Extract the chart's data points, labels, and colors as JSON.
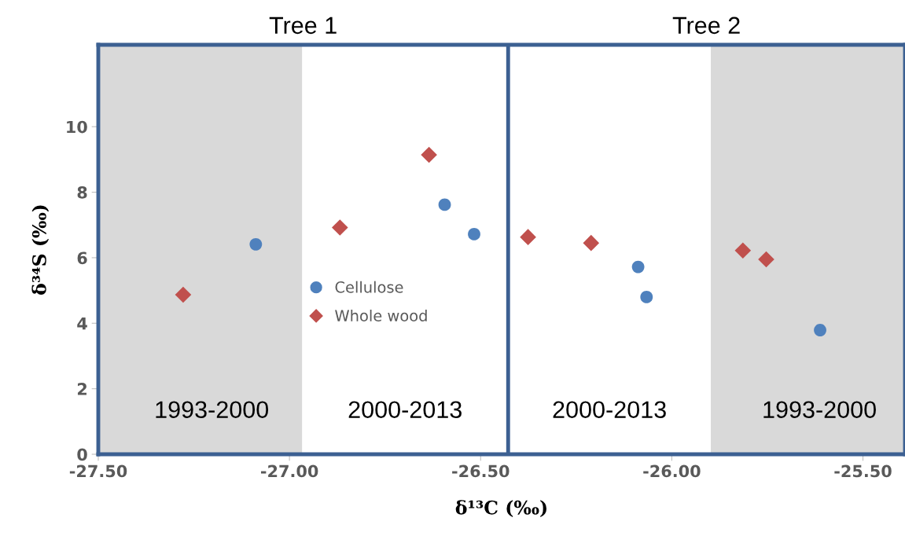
{
  "chart_data": {
    "type": "scatter",
    "xlabel": "δ¹³C (‰)",
    "ylabel": "δ³⁴S (‰)",
    "xlim": [
      -27.5,
      -25.39
    ],
    "ylim": [
      0,
      12.5
    ],
    "xticks": [
      {
        "value": -27.5,
        "label": "-27.50"
      },
      {
        "value": -27.0,
        "label": "-27.00"
      },
      {
        "value": -26.5,
        "label": "-26.50"
      },
      {
        "value": -26.0,
        "label": "-26.00"
      },
      {
        "value": -25.5,
        "label": "-25.50"
      }
    ],
    "yticks": [
      0,
      2,
      4,
      6,
      8,
      10
    ],
    "grid": false,
    "legend": "center",
    "series": [
      {
        "name": "Cellulose",
        "color": "#4f81bd",
        "marker": "circle",
        "x": [
          -27.088,
          -26.594,
          -26.517,
          -26.088,
          -26.066,
          -25.612
        ],
        "values": [
          6.41,
          7.62,
          6.72,
          5.72,
          4.8,
          3.79
        ]
      },
      {
        "name": "Whole wood",
        "color": "#c0504d",
        "marker": "diamond",
        "x": [
          -27.278,
          -26.868,
          -26.635,
          -26.376,
          -26.211,
          -25.814,
          -25.753
        ],
        "values": [
          4.87,
          6.92,
          9.14,
          6.63,
          6.45,
          6.22,
          5.95
        ]
      }
    ],
    "bands": [
      {
        "axis": "x",
        "from": -27.5,
        "to": -26.967,
        "label": "1993-2000",
        "color": "#d9d9d9"
      },
      {
        "axis": "x",
        "from": -25.898,
        "to": -25.39,
        "label": "1993-2000",
        "color": "#d9d9d9"
      }
    ],
    "ref_lines": [
      {
        "axis": "x",
        "value": -26.428,
        "color": "#3c6092",
        "line_style": "solid"
      }
    ],
    "annotations": [
      "Tree 1",
      "Tree 2",
      "2000-2013",
      "2000-2013"
    ]
  }
}
